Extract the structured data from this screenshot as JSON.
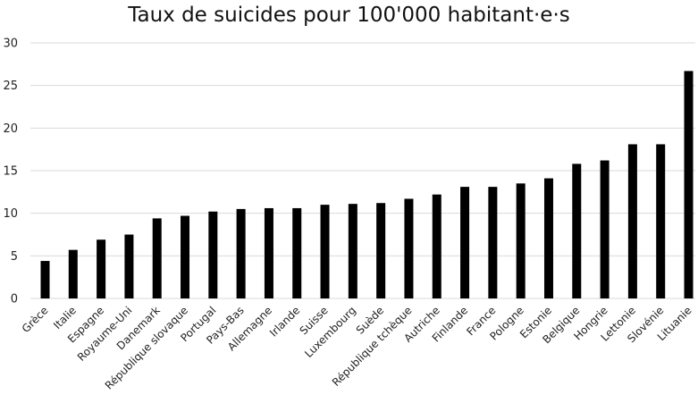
{
  "chart_data": {
    "type": "bar",
    "title": "Taux de suicides pour 100'000 habitant·e·s",
    "xlabel": "",
    "ylabel": "",
    "ylim": [
      0,
      30
    ],
    "yticks": [
      0,
      5,
      10,
      15,
      20,
      25,
      30
    ],
    "grid": true,
    "legend": "none",
    "bar_color": "#000000",
    "grid_color": "#d9d9d9",
    "categories": [
      "Grèce",
      "Italie",
      "Espagne",
      "Royaume-Uni",
      "Danemark",
      "République slovaque",
      "Portugal",
      "Pays-Bas",
      "Allemagne",
      "Irlande",
      "Suisse",
      "Luxembourg",
      "Suède",
      "République tchèque",
      "Autriche",
      "Finlande",
      "France",
      "Pologne",
      "Estonie",
      "Belgique",
      "Hongrie",
      "Lettonie",
      "Slovénie",
      "Lituanie"
    ],
    "values": [
      4.4,
      5.7,
      6.9,
      7.5,
      9.4,
      9.7,
      10.2,
      10.5,
      10.6,
      10.6,
      11.0,
      11.1,
      11.2,
      11.7,
      12.2,
      13.1,
      13.1,
      13.5,
      14.1,
      15.8,
      16.2,
      18.1,
      18.1,
      26.7
    ]
  }
}
